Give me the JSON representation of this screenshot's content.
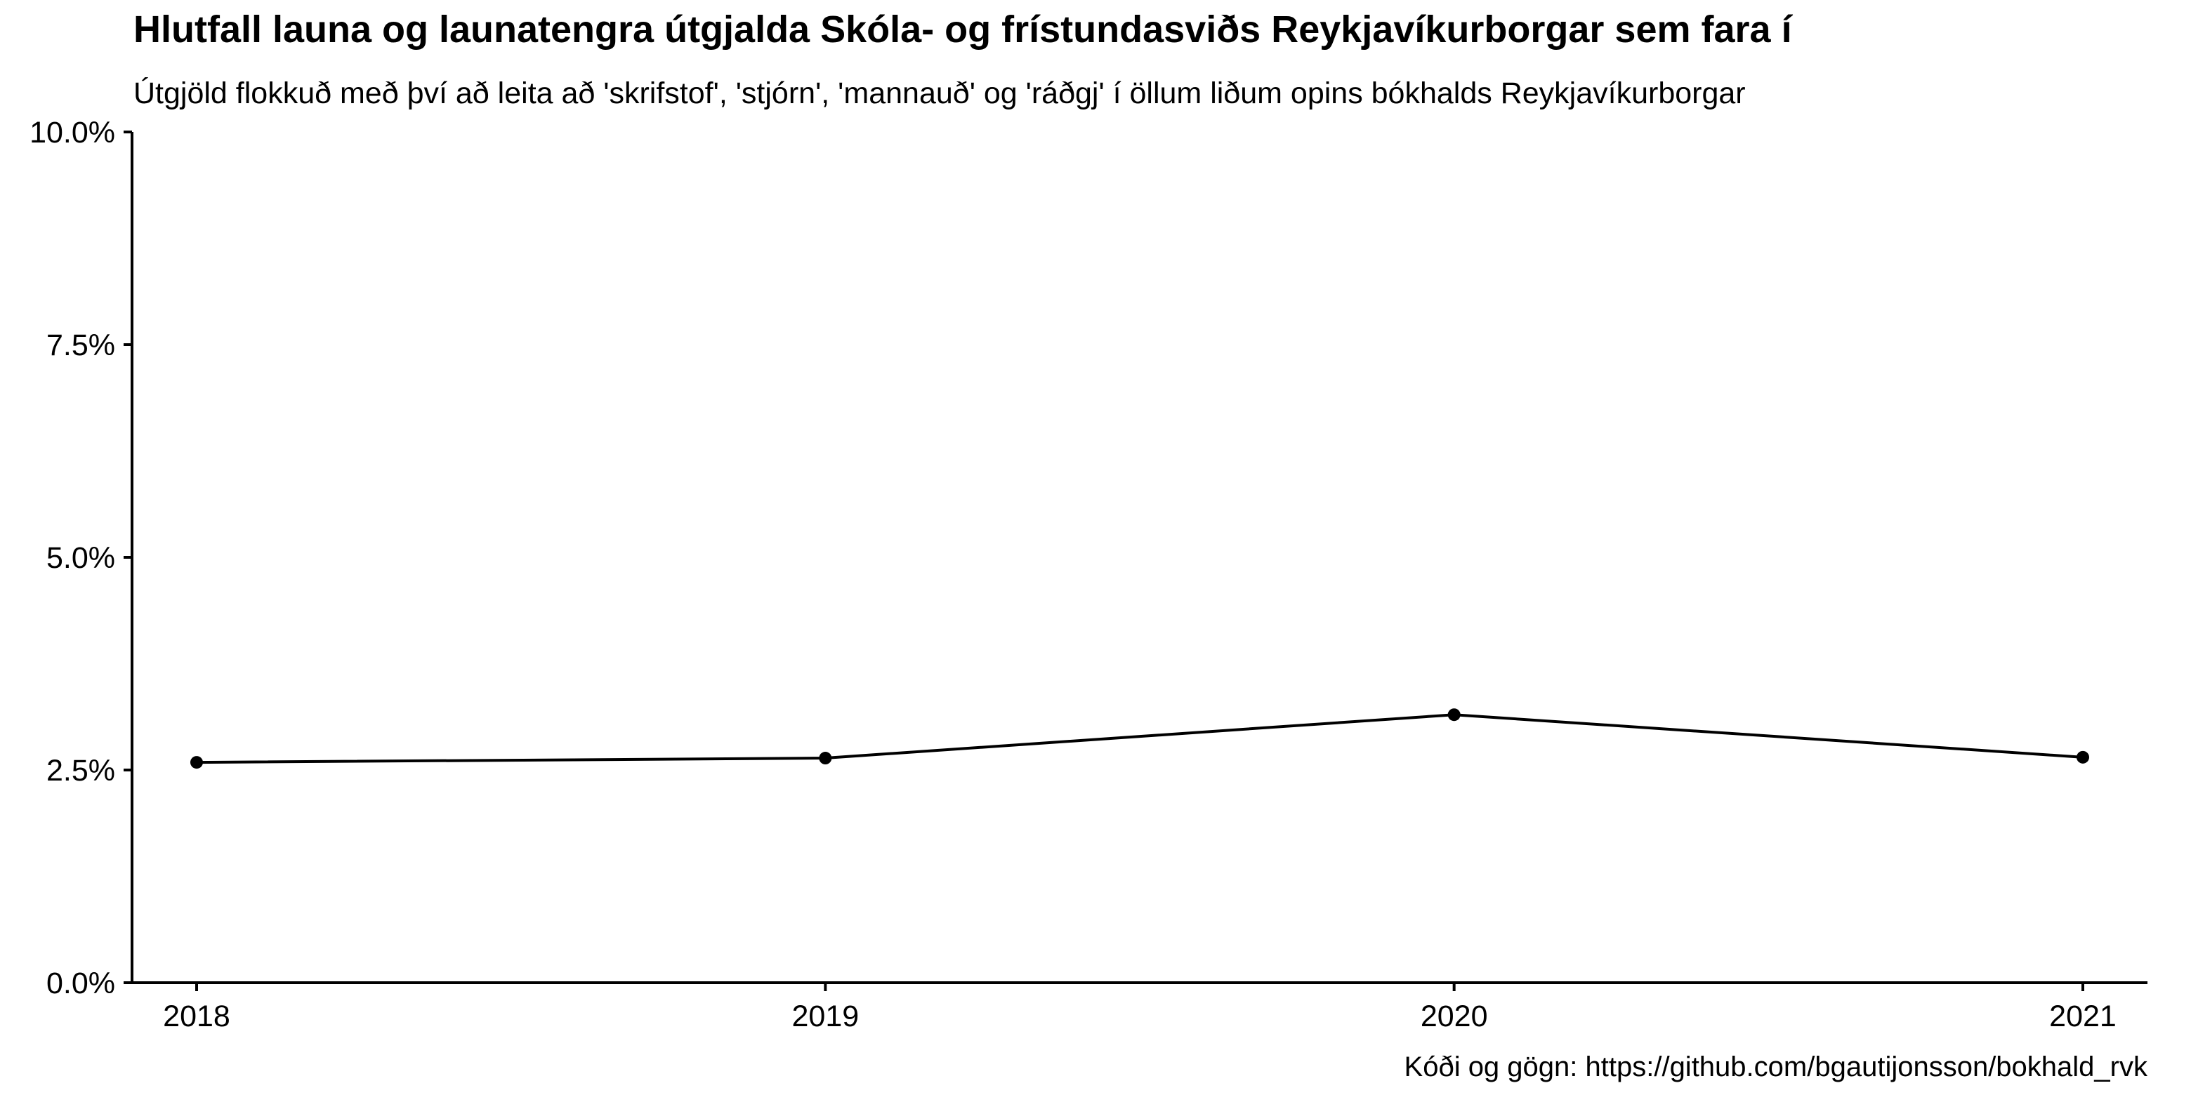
{
  "chart_data": {
    "type": "line",
    "title": "Hlutfall launa og launatengra útgjalda Skóla- og frístundasviðs Reykjavíkurborgar sem fara í",
    "subtitle": "Útgjöld flokkuð með því að leita að 'skrifstof', 'stjórn', 'mannauð' og 'ráðgj' í öllum liðum opins bókhalds Reykjavíkurborgar",
    "caption": "Kóði og gögn: https://github.com/bgautijonsson/bokhald_rvk",
    "xlabel": "",
    "ylabel": "",
    "x": [
      2018,
      2019,
      2020,
      2021
    ],
    "x_tick_labels": [
      "2018",
      "2019",
      "2020",
      "2021"
    ],
    "series": [
      {
        "values": [
          0.0259,
          0.0264,
          0.0315,
          0.0265
        ],
        "color": "#000000"
      }
    ],
    "ylim": [
      0,
      0.1
    ],
    "y_ticks": [
      0,
      0.025,
      0.05,
      0.075,
      0.1
    ],
    "y_tick_labels": [
      "0.0%",
      "2.5%",
      "5.0%",
      "7.5%",
      "10.0%"
    ],
    "grid": false,
    "legend": "none"
  }
}
